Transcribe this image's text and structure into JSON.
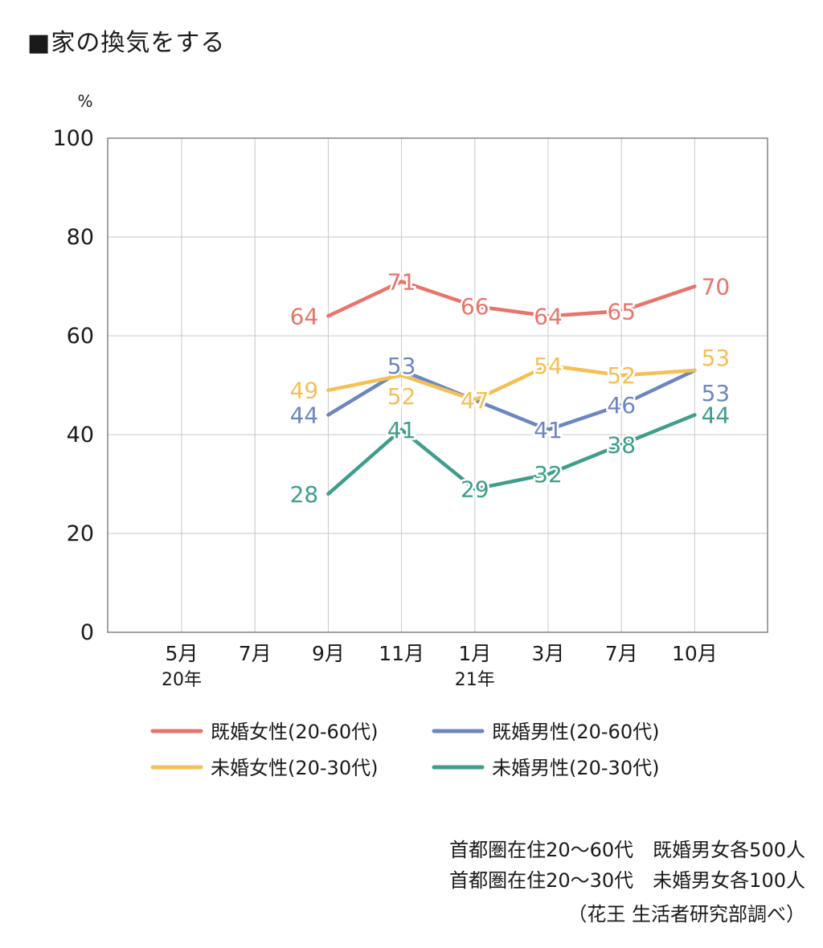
{
  "title": "■家の換気をする",
  "chart_data": {
    "type": "line",
    "ylabel": "%",
    "ylim": [
      0,
      100
    ],
    "yticks": [
      "0",
      "20",
      "40",
      "60",
      "80",
      "100"
    ],
    "categories": [
      "5月",
      "7月",
      "9月",
      "11月",
      "1月",
      "3月",
      "7月",
      "10月"
    ],
    "year_labels": [
      {
        "index": 0,
        "text": "20年"
      },
      {
        "index": 4,
        "text": "21年"
      }
    ],
    "grid": true,
    "legend_position": "bottom",
    "series": [
      {
        "name": "既婚女性(20-60代)",
        "color": "#e8746b",
        "values": [
          null,
          null,
          64,
          71,
          66,
          64,
          65,
          70
        ]
      },
      {
        "name": "既婚男性(20-60代)",
        "color": "#6d86c0",
        "values": [
          null,
          null,
          44,
          53,
          47,
          41,
          46,
          53
        ]
      },
      {
        "name": "未婚女性(20-30代)",
        "color": "#f4bf55",
        "values": [
          null,
          null,
          49,
          52,
          47,
          54,
          52,
          53
        ]
      },
      {
        "name": "未婚男性(20-30代)",
        "color": "#3f9d8a",
        "values": [
          null,
          null,
          28,
          41,
          29,
          32,
          38,
          44
        ]
      }
    ]
  },
  "notes": [
    "首都圏在住20～60代　既婚男女各500人",
    "首都圏在住20～30代　未婚男女各100人",
    "（花王 生活者研究部調べ）"
  ]
}
